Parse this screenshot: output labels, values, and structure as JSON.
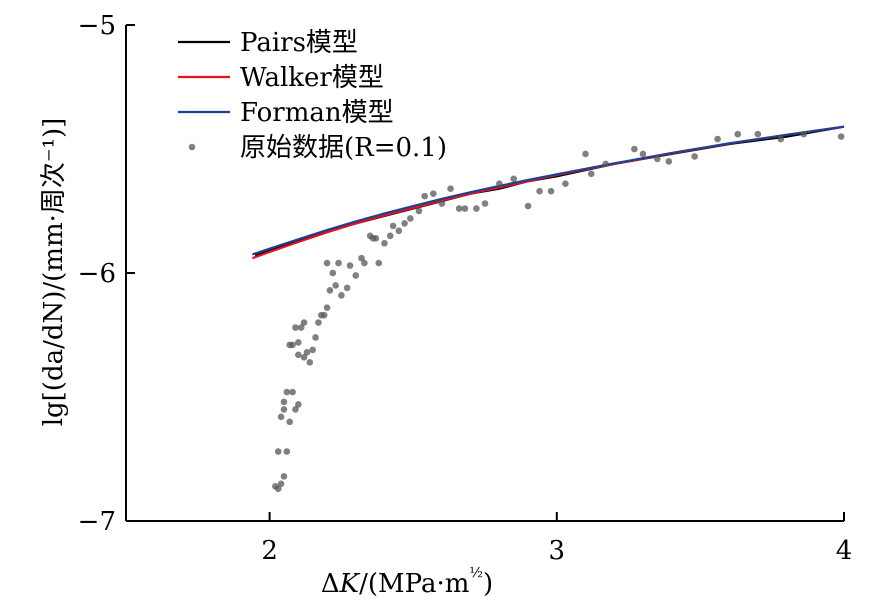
{
  "chart_data": {
    "type": "scatter",
    "title": "",
    "xlabel": "ΔK/(MPa·m^1/2)",
    "ylabel": "lg[(da/dN)/(mm·周次⁻¹)]",
    "xlim": [
      1.5,
      4.0
    ],
    "ylim": [
      -7,
      -5
    ],
    "xticks": [
      2,
      3,
      4
    ],
    "yticks": [
      -7,
      -6,
      -5
    ],
    "xtick_labels": [
      "2",
      "3",
      "4"
    ],
    "ytick_labels": [
      "−7",
      "−6",
      "−5"
    ],
    "grid": false,
    "legend_position": "top-left",
    "series": [
      {
        "name": "Pairs模型",
        "kind": "line",
        "color": "#000000",
        "x": [
          1.95,
          2.0,
          2.1,
          2.2,
          2.3,
          2.4,
          2.5,
          2.6,
          2.7,
          2.8,
          2.9,
          3.0,
          3.2,
          3.4,
          3.6,
          3.8,
          4.0
        ],
        "y": [
          -5.93,
          -5.91,
          -5.87,
          -5.83,
          -5.8,
          -5.77,
          -5.74,
          -5.71,
          -5.68,
          -5.66,
          -5.63,
          -5.61,
          -5.56,
          -5.52,
          -5.48,
          -5.45,
          -5.41
        ]
      },
      {
        "name": "Walker模型",
        "kind": "line",
        "color": "#e8101c",
        "x": [
          1.94,
          2.0,
          2.1,
          2.2,
          2.3,
          2.4,
          2.5,
          2.6,
          2.7,
          2.8,
          2.9,
          3.0,
          3.2,
          3.4,
          3.6,
          3.8,
          4.0
        ],
        "y": [
          -5.94,
          -5.915,
          -5.875,
          -5.836,
          -5.8,
          -5.768,
          -5.738,
          -5.708,
          -5.68,
          -5.655,
          -5.63,
          -5.605,
          -5.56,
          -5.518,
          -5.478,
          -5.443,
          -5.41
        ]
      },
      {
        "name": "Forman模型",
        "kind": "line",
        "color": "#1f3f93",
        "x": [
          1.94,
          2.0,
          2.1,
          2.2,
          2.3,
          2.4,
          2.5,
          2.6,
          2.7,
          2.8,
          2.9,
          3.0,
          3.2,
          3.4,
          3.6,
          3.8,
          4.0
        ],
        "y": [
          -5.925,
          -5.902,
          -5.864,
          -5.827,
          -5.792,
          -5.76,
          -5.73,
          -5.701,
          -5.674,
          -5.649,
          -5.625,
          -5.602,
          -5.558,
          -5.516,
          -5.477,
          -5.443,
          -5.41
        ]
      },
      {
        "name": "原始数据(R=0.1)",
        "kind": "scatter",
        "color": "#555555",
        "x": [
          2.02,
          2.03,
          2.04,
          2.05,
          2.03,
          2.06,
          2.04,
          2.05,
          2.07,
          2.06,
          2.05,
          2.08,
          2.09,
          2.1,
          2.07,
          2.08,
          2.09,
          2.1,
          2.11,
          2.12,
          2.1,
          2.13,
          2.14,
          2.15,
          2.12,
          2.16,
          2.17,
          2.18,
          2.19,
          2.2,
          2.21,
          2.2,
          2.22,
          2.23,
          2.24,
          2.25,
          2.27,
          2.28,
          2.3,
          2.32,
          2.33,
          2.35,
          2.36,
          2.37,
          2.38,
          2.4,
          2.42,
          2.43,
          2.45,
          2.47,
          2.49,
          2.52,
          2.54,
          2.57,
          2.6,
          2.63,
          2.66,
          2.68,
          2.72,
          2.75,
          2.8,
          2.85,
          2.9,
          2.94,
          2.98,
          3.03,
          3.1,
          3.12,
          3.17,
          3.27,
          3.3,
          3.35,
          3.39,
          3.48,
          3.56,
          3.63,
          3.7,
          3.78,
          3.86,
          3.99
        ],
        "y": [
          -6.86,
          -6.87,
          -6.85,
          -6.82,
          -6.72,
          -6.72,
          -6.58,
          -6.52,
          -6.6,
          -6.48,
          -6.55,
          -6.48,
          -6.55,
          -6.53,
          -6.29,
          -6.29,
          -6.22,
          -6.28,
          -6.22,
          -6.34,
          -6.33,
          -6.32,
          -6.36,
          -6.31,
          -6.2,
          -6.26,
          -6.2,
          -6.17,
          -6.17,
          -6.14,
          -6.07,
          -5.96,
          -6.0,
          -6.05,
          -5.96,
          -6.09,
          -6.06,
          -5.97,
          -6.01,
          -5.94,
          -5.96,
          -5.85,
          -5.86,
          -5.86,
          -5.96,
          -5.88,
          -5.85,
          -5.81,
          -5.83,
          -5.8,
          -5.78,
          -5.75,
          -5.69,
          -5.68,
          -5.72,
          -5.66,
          -5.74,
          -5.74,
          -5.74,
          -5.72,
          -5.64,
          -5.62,
          -5.73,
          -5.67,
          -5.67,
          -5.64,
          -5.52,
          -5.6,
          -5.56,
          -5.5,
          -5.52,
          -5.54,
          -5.55,
          -5.53,
          -5.46,
          -5.44,
          -5.44,
          -5.46,
          -5.44,
          -5.45
        ]
      }
    ]
  }
}
